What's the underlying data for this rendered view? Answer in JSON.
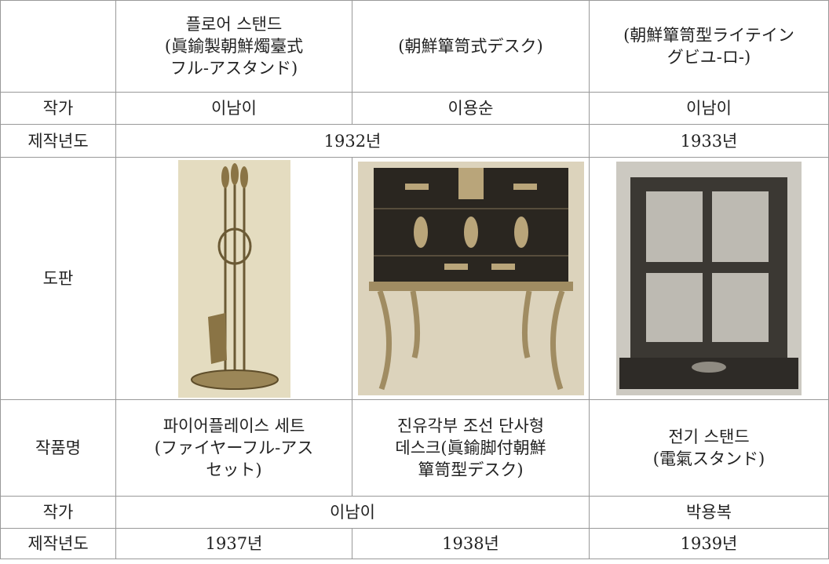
{
  "table": {
    "header": [
      [
        "플로어 스탠드",
        "(眞鍮製朝鮮燭臺式",
        "フル-アスタンド)"
      ],
      [
        "(朝鮮簞笥式デスク)"
      ],
      [
        "(朝鮮簞笥型ライテイン",
        "グビユ-ロ-)"
      ]
    ],
    "rows": [
      {
        "label": "작가",
        "cells": [
          "이남이",
          "이용순",
          "이남이"
        ]
      },
      {
        "label": "제작년도",
        "cells": [
          "1932년",
          "1933년"
        ]
      },
      {
        "label": "도판"
      },
      {
        "label": "작품명",
        "cells": [
          [
            "파이어플레이스 세트",
            "(ファイヤーフル-アス",
            "セット)"
          ],
          [
            "진유각부 조선 단사형",
            "데스크(眞鍮脚付朝鮮",
            "簞笥型デスク)"
          ],
          [
            "전기 스탠드",
            "(電氣スタンド)"
          ]
        ]
      },
      {
        "label": "작가",
        "cells": [
          "이남이",
          "박용복"
        ]
      },
      {
        "label": "제작년도",
        "cells": [
          "1937년",
          "1938년",
          "1939년"
        ]
      }
    ]
  }
}
